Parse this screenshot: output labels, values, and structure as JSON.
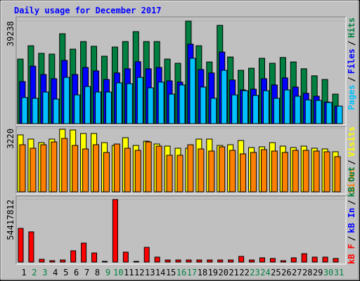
{
  "chart_data": [
    {
      "type": "bar",
      "title": "Daily usage for December 2017",
      "ylim": [
        0,
        39238
      ],
      "yticks": [
        39238
      ],
      "legend_separator": "/",
      "series": [
        {
          "name": "Hits",
          "color": "#008040",
          "values": [
            24700,
            29800,
            26900,
            26600,
            34400,
            28500,
            31400,
            29600,
            25800,
            29300,
            31400,
            35200,
            31400,
            31400,
            24700,
            23100,
            39238,
            29800,
            23600,
            37600,
            25500,
            20400,
            21200,
            25000,
            23100,
            25300,
            23600,
            21000,
            18300,
            16900,
            11300
          ]
        },
        {
          "name": "Files",
          "color": "#0000ff",
          "values": [
            16100,
            22000,
            18800,
            17200,
            24200,
            18800,
            21500,
            20200,
            16900,
            19400,
            21000,
            23700,
            21000,
            21500,
            16400,
            15900,
            30400,
            20700,
            19400,
            27400,
            16700,
            12900,
            13200,
            17200,
            14800,
            17500,
            14000,
            11600,
            10500,
            8300,
            6700
          ]
        },
        {
          "name": "Pages",
          "color": "#00c0ff",
          "values": [
            10000,
            9700,
            12100,
            9400,
            17700,
            11000,
            14200,
            12100,
            12100,
            15600,
            15300,
            17700,
            13700,
            15900,
            11300,
            14800,
            25000,
            14000,
            9700,
            20400,
            11000,
            12600,
            10800,
            12600,
            9700,
            12900,
            10500,
            9100,
            8900,
            8100,
            6700
          ]
        }
      ]
    },
    {
      "type": "bar",
      "ylim": [
        0,
        3220
      ],
      "yticks": [
        3220
      ],
      "legend_separator": "/",
      "series": [
        {
          "name": "Visits",
          "color": "#ffff00",
          "values": [
            2898,
            2683,
            2504,
            2683,
            3184,
            3148,
            2970,
            2970,
            2504,
            2361,
            2755,
            2361,
            2576,
            2433,
            2326,
            2218,
            2218,
            2683,
            2683,
            2361,
            2397,
            2612,
            2254,
            2290,
            2504,
            2326,
            2254,
            2326,
            2218,
            2183,
            2039
          ]
        },
        {
          "name": "Sites",
          "color": "#ff8000",
          "values": [
            2397,
            2218,
            2397,
            2540,
            2719,
            2361,
            2183,
            2397,
            2004,
            2433,
            2218,
            2111,
            2540,
            2326,
            1861,
            1861,
            2397,
            2183,
            2075,
            2290,
            2111,
            1932,
            2004,
            2147,
            2075,
            2004,
            2111,
            2111,
            2075,
            2039,
            1789
          ]
        }
      ]
    },
    {
      "type": "bar",
      "ylim": [
        0,
        54417812
      ],
      "yticks": [
        54417812
      ],
      "legend_separator": "/",
      "categories": [
        "1",
        "2",
        "3",
        "4",
        "5",
        "6",
        "7",
        "8",
        "9",
        "10",
        "11",
        "12",
        "13",
        "14",
        "15",
        "16",
        "17",
        "18",
        "19",
        "20",
        "21",
        "22",
        "23",
        "24",
        "25",
        "26",
        "27",
        "28",
        "29",
        "30",
        "31"
      ],
      "category_colors": [
        "#000000",
        "#008040",
        "#008040",
        "#000000",
        "#000000",
        "#000000",
        "#000000",
        "#000000",
        "#008040",
        "#008040",
        "#000000",
        "#000000",
        "#000000",
        "#000000",
        "#000000",
        "#008040",
        "#008040",
        "#000000",
        "#000000",
        "#000000",
        "#000000",
        "#000000",
        "#008040",
        "#008040",
        "#000000",
        "#000000",
        "#000000",
        "#000000",
        "#000000",
        "#008040",
        "#008040"
      ],
      "series": [
        {
          "name": "kB F",
          "color": "#ff0000",
          "values": [
            29300000,
            26300000,
            2400000,
            1200000,
            1800000,
            9800000,
            16500000,
            7900000,
            600000,
            54417812,
            8600000,
            600000,
            12800000,
            4300000,
            1800000,
            1800000,
            1800000,
            1800000,
            1800000,
            1800000,
            1800000,
            4900000,
            1800000,
            3700000,
            3100000,
            1200000,
            3700000,
            7300000,
            4300000,
            4300000,
            3100000
          ]
        }
      ],
      "legend_extra": [
        {
          "name": "kB In",
          "color": "#0000ff"
        },
        {
          "name": "kB Out",
          "color": "#008040"
        }
      ]
    }
  ]
}
